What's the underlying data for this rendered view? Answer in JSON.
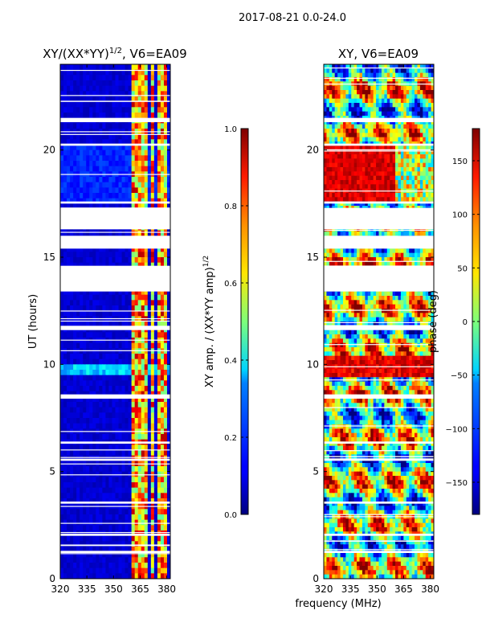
{
  "figure": {
    "suptitle": "2017-08-21 0.0-24.0",
    "common_xlabel": "frequency (MHz)"
  },
  "chart_data": [
    {
      "type": "heatmap",
      "title_main": "XY/(XX*YY)",
      "title_sup": "1/2",
      "title_rest": ", V6=EA09",
      "xlabel": "",
      "ylabel": "UT (hours)",
      "xlim": [
        320,
        382
      ],
      "ylim": [
        0,
        24
      ],
      "xticks": [
        320,
        335,
        350,
        365,
        380
      ],
      "yticks": [
        0,
        5,
        10,
        15,
        20
      ],
      "colorbar": {
        "label_main": "XY amp. / (XX*YY amp)",
        "label_sup": "1/2",
        "range": [
          0.0,
          1.0
        ],
        "ticks": [
          "0.0",
          "0.2",
          "0.4",
          "0.6",
          "0.8",
          "1.0"
        ]
      },
      "bright_bands_mhz": [
        [
          360,
          365
        ],
        [
          366,
          370
        ],
        [
          371,
          373
        ],
        [
          374,
          376
        ],
        [
          377,
          380
        ]
      ],
      "gaps_hours": [
        [
          13.4,
          14.6
        ],
        [
          15.4,
          16.0
        ],
        [
          16.3,
          17.3
        ],
        [
          17.5,
          17.6
        ],
        [
          21.3,
          21.5
        ],
        [
          20.2,
          20.3
        ],
        [
          11.6,
          11.8
        ],
        [
          8.4,
          8.6
        ],
        [
          6.3,
          6.4
        ],
        [
          5.5,
          5.6
        ],
        [
          3.5,
          3.6
        ],
        [
          2.0,
          2.1
        ],
        [
          1.2,
          1.3
        ]
      ]
    },
    {
      "type": "heatmap",
      "title_main": "XY, V6=EA09",
      "xlabel": "frequency (MHz)",
      "ylabel": "",
      "xlim": [
        320,
        382
      ],
      "ylim": [
        0,
        24
      ],
      "xticks": [
        320,
        335,
        350,
        365,
        380
      ],
      "yticks": [
        0,
        5,
        10,
        15,
        20
      ],
      "colorbar": {
        "label": "phase (deg)",
        "range": [
          -180,
          180
        ],
        "ticks": [
          "150",
          "100",
          "50",
          "0",
          "−50",
          "−100",
          "−150"
        ]
      }
    }
  ],
  "colors": {
    "jet_low": "#00007f",
    "jet_high": "#7f0000"
  }
}
